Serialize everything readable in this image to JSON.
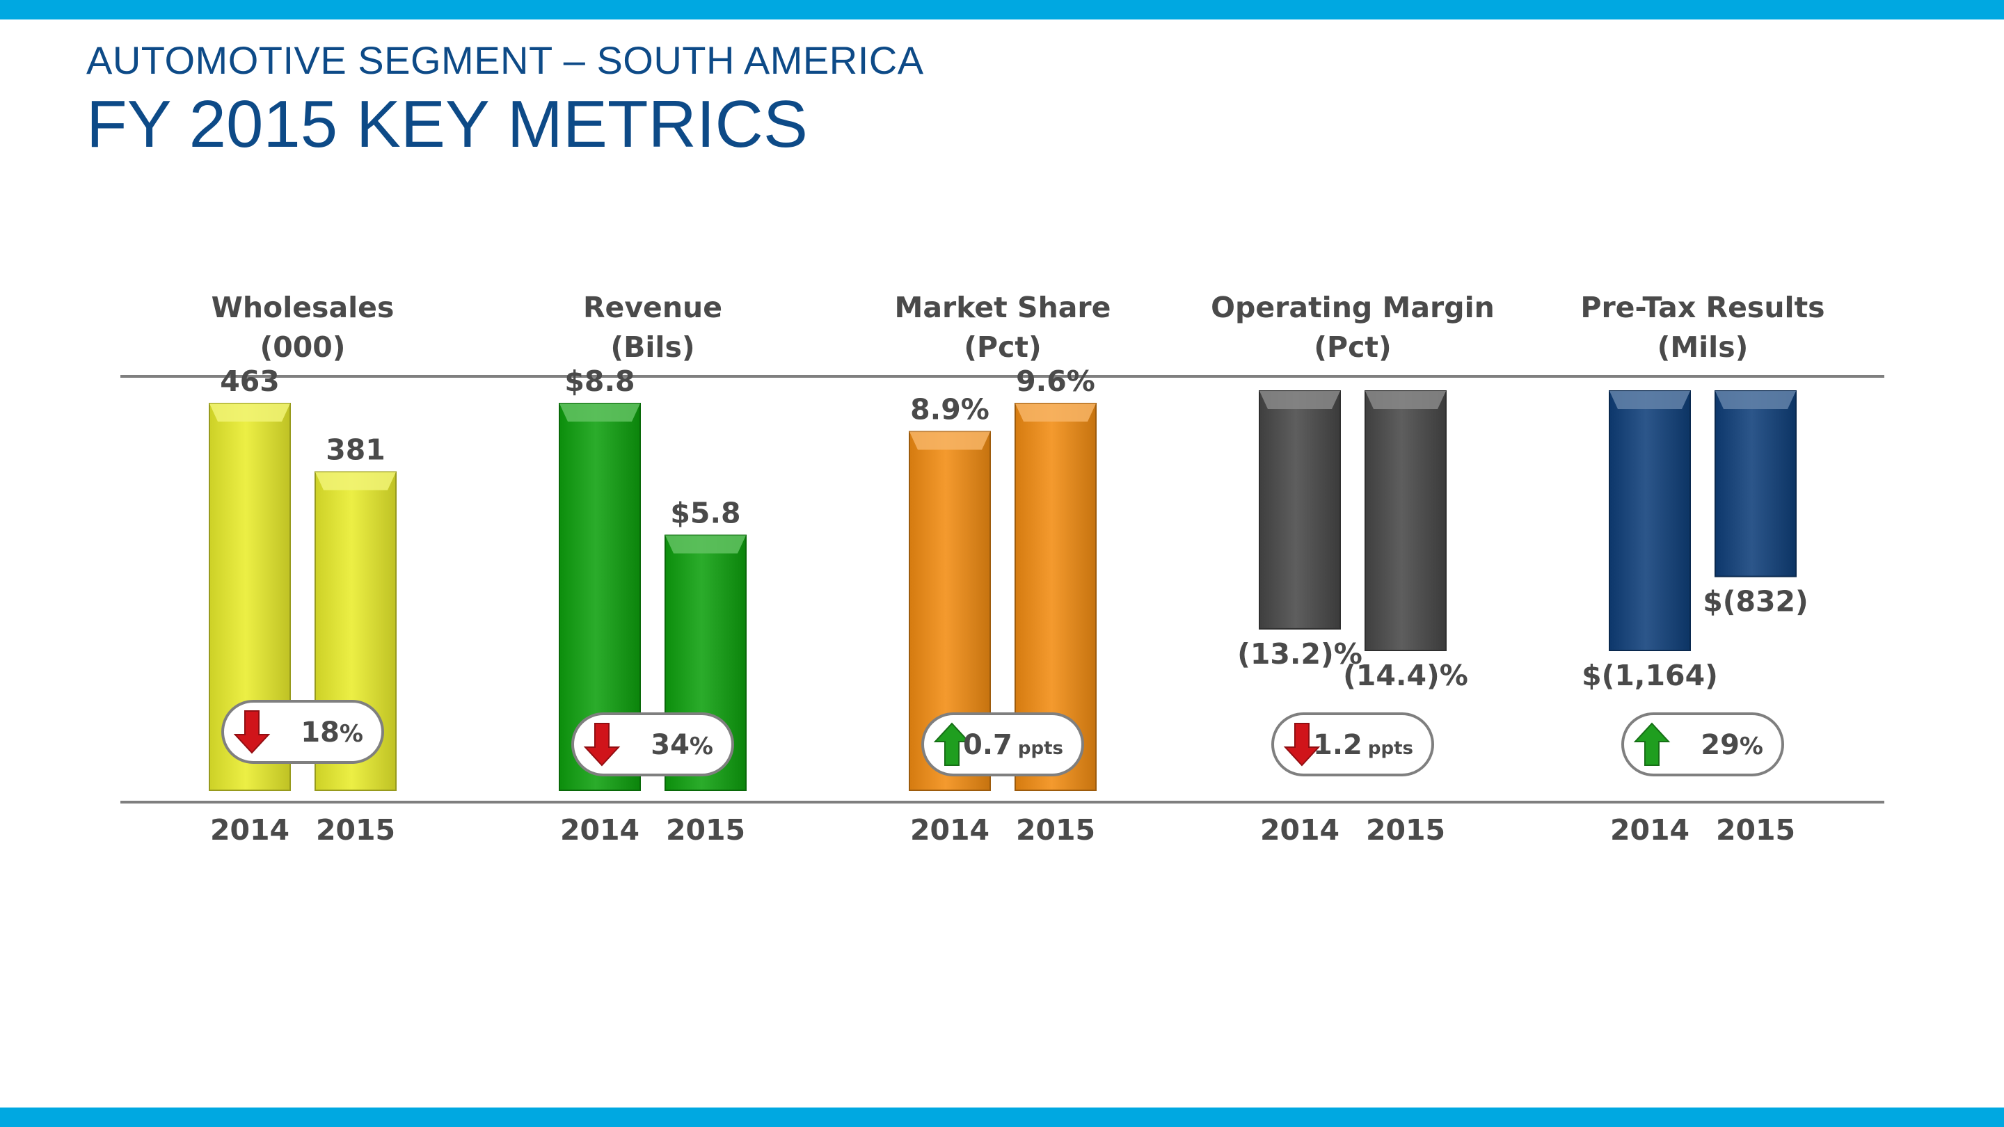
{
  "header": {
    "subtitle": "AUTOMOTIVE SEGMENT – SOUTH AMERICA",
    "title": "FY 2015 KEY METRICS"
  },
  "colors": {
    "band": "#00a8e1",
    "title": "#0d4a87",
    "text": "#4a4a4a",
    "rule": "#7f7f7f",
    "up_arrow": "#1f9e1f",
    "down_arrow": "#d0141a"
  },
  "chart_data": [
    {
      "type": "bar",
      "title": "Wholesales",
      "unit_label": "(000)",
      "categories": [
        "2014",
        "2015"
      ],
      "values": [
        463,
        381
      ],
      "value_labels": [
        "463",
        "381"
      ],
      "color": "#e9ed2c",
      "change": {
        "direction": "down",
        "text": "18",
        "suffix": "%"
      }
    },
    {
      "type": "bar",
      "title": "Revenue",
      "unit_label": "(Bils)",
      "categories": [
        "2014",
        "2015"
      ],
      "values": [
        8.8,
        5.8
      ],
      "value_labels": [
        "$8.8",
        "$5.8"
      ],
      "color": "#0ea10e",
      "change": {
        "direction": "down",
        "text": "34",
        "suffix": "%"
      }
    },
    {
      "type": "bar",
      "title": "Market Share",
      "unit_label": "(Pct)",
      "categories": [
        "2014",
        "2015"
      ],
      "values": [
        8.9,
        9.6
      ],
      "value_labels": [
        "8.9%",
        "9.6%"
      ],
      "color": "#f28c12",
      "change": {
        "direction": "up",
        "text": "0.7",
        "suffix": "ppts"
      }
    },
    {
      "type": "bar",
      "title": "Operating Margin",
      "unit_label": "(Pct)",
      "categories": [
        "2014",
        "2015"
      ],
      "values": [
        -13.2,
        -14.4
      ],
      "value_labels": [
        "(13.2)%",
        "(14.4)%"
      ],
      "color": "#484848",
      "change": {
        "direction": "down",
        "text": "1.2",
        "suffix": "ppts"
      }
    },
    {
      "type": "bar",
      "title": "Pre-Tax Results",
      "unit_label": "(Mils)",
      "categories": [
        "2014",
        "2015"
      ],
      "values": [
        -1164,
        -832
      ],
      "value_labels": [
        "$(1,164)",
        "$(832)"
      ],
      "color": "#0f3f7a",
      "change": {
        "direction": "up",
        "text": "29",
        "suffix": "%"
      }
    }
  ]
}
